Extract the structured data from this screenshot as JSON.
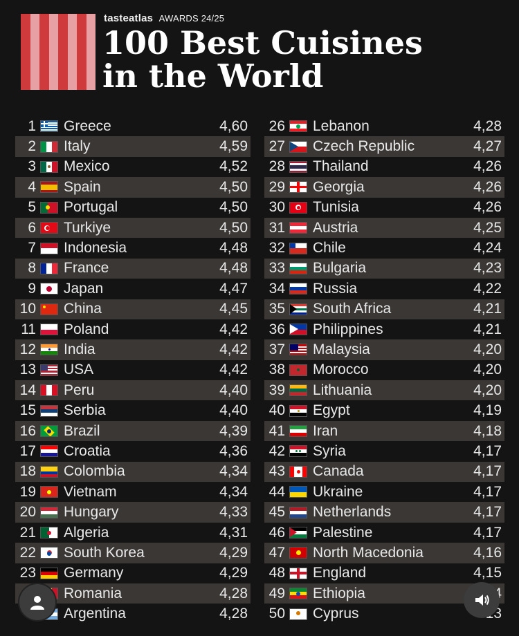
{
  "header": {
    "brand": "tasteatlas",
    "awards": "AWARDS 24/25",
    "title_line1": "100 Best Cuisines",
    "title_line2": "in the World"
  },
  "left": [
    {
      "rank": "1",
      "name": "Greece",
      "score": "4,60",
      "flag": "greece"
    },
    {
      "rank": "2",
      "name": "Italy",
      "score": "4,59",
      "flag": "italy"
    },
    {
      "rank": "3",
      "name": "Mexico",
      "score": "4,52",
      "flag": "mexico"
    },
    {
      "rank": "4",
      "name": "Spain",
      "score": "4,50",
      "flag": "spain"
    },
    {
      "rank": "5",
      "name": "Portugal",
      "score": "4,50",
      "flag": "portugal"
    },
    {
      "rank": "6",
      "name": "Turkiye",
      "score": "4,50",
      "flag": "turkiye"
    },
    {
      "rank": "7",
      "name": "Indonesia",
      "score": "4,48",
      "flag": "indonesia"
    },
    {
      "rank": "8",
      "name": "France",
      "score": "4,48",
      "flag": "france"
    },
    {
      "rank": "9",
      "name": "Japan",
      "score": "4,47",
      "flag": "japan"
    },
    {
      "rank": "10",
      "name": "China",
      "score": "4,45",
      "flag": "china"
    },
    {
      "rank": "11",
      "name": "Poland",
      "score": "4,42",
      "flag": "poland"
    },
    {
      "rank": "12",
      "name": "India",
      "score": "4,42",
      "flag": "india"
    },
    {
      "rank": "13",
      "name": "USA",
      "score": "4,42",
      "flag": "usa"
    },
    {
      "rank": "14",
      "name": "Peru",
      "score": "4,40",
      "flag": "peru"
    },
    {
      "rank": "15",
      "name": "Serbia",
      "score": "4,40",
      "flag": "serbia"
    },
    {
      "rank": "16",
      "name": "Brazil",
      "score": "4,39",
      "flag": "brazil"
    },
    {
      "rank": "17",
      "name": "Croatia",
      "score": "4,36",
      "flag": "croatia"
    },
    {
      "rank": "18",
      "name": "Colombia",
      "score": "4,34",
      "flag": "colombia"
    },
    {
      "rank": "19",
      "name": "Vietnam",
      "score": "4,34",
      "flag": "vietnam"
    },
    {
      "rank": "20",
      "name": "Hungary",
      "score": "4,33",
      "flag": "hungary"
    },
    {
      "rank": "21",
      "name": "Algeria",
      "score": "4,31",
      "flag": "algeria"
    },
    {
      "rank": "22",
      "name": "South Korea",
      "score": "4,29",
      "flag": "south-korea"
    },
    {
      "rank": "23",
      "name": "Germany",
      "score": "4,29",
      "flag": "germany"
    },
    {
      "rank": "2",
      "name": "Romania",
      "score": "4,28",
      "flag": "romania"
    },
    {
      "rank": "2",
      "name": "Argentina",
      "score": "4,28",
      "flag": "argentina"
    }
  ],
  "right": [
    {
      "rank": "26",
      "name": "Lebanon",
      "score": "4,28",
      "flag": "lebanon"
    },
    {
      "rank": "27",
      "name": "Czech Republic",
      "score": "4,27",
      "flag": "czech"
    },
    {
      "rank": "28",
      "name": "Thailand",
      "score": "4,26",
      "flag": "thailand"
    },
    {
      "rank": "29",
      "name": "Georgia",
      "score": "4,26",
      "flag": "georgia"
    },
    {
      "rank": "30",
      "name": "Tunisia",
      "score": "4,26",
      "flag": "tunisia"
    },
    {
      "rank": "31",
      "name": "Austria",
      "score": "4,25",
      "flag": "austria"
    },
    {
      "rank": "32",
      "name": "Chile",
      "score": "4,24",
      "flag": "chile"
    },
    {
      "rank": "33",
      "name": "Bulgaria",
      "score": "4,23",
      "flag": "bulgaria"
    },
    {
      "rank": "34",
      "name": "Russia",
      "score": "4,22",
      "flag": "russia"
    },
    {
      "rank": "35",
      "name": "South Africa",
      "score": "4,21",
      "flag": "south-africa"
    },
    {
      "rank": "36",
      "name": "Philippines",
      "score": "4,21",
      "flag": "philippines"
    },
    {
      "rank": "37",
      "name": "Malaysia",
      "score": "4,20",
      "flag": "malaysia"
    },
    {
      "rank": "38",
      "name": "Morocco",
      "score": "4,20",
      "flag": "morocco"
    },
    {
      "rank": "39",
      "name": "Lithuania",
      "score": "4,20",
      "flag": "lithuania"
    },
    {
      "rank": "40",
      "name": "Egypt",
      "score": "4,19",
      "flag": "egypt"
    },
    {
      "rank": "41",
      "name": "Iran",
      "score": "4,18",
      "flag": "iran"
    },
    {
      "rank": "42",
      "name": "Syria",
      "score": "4,17",
      "flag": "syria"
    },
    {
      "rank": "43",
      "name": "Canada",
      "score": "4,17",
      "flag": "canada"
    },
    {
      "rank": "44",
      "name": "Ukraine",
      "score": "4,17",
      "flag": "ukraine"
    },
    {
      "rank": "45",
      "name": "Netherlands",
      "score": "4,17",
      "flag": "netherlands"
    },
    {
      "rank": "46",
      "name": "Palestine",
      "score": "4,17",
      "flag": "palestine"
    },
    {
      "rank": "47",
      "name": "North Macedonia",
      "score": "4,16",
      "flag": "north-macedonia"
    },
    {
      "rank": "48",
      "name": "England",
      "score": "4,15",
      "flag": "england"
    },
    {
      "rank": "49",
      "name": "Ethiopia",
      "score": "4",
      "flag": "ethiopia"
    },
    {
      "rank": "50",
      "name": "Cyprus",
      "score": "13",
      "flag": "cyprus"
    }
  ],
  "colors": {
    "background": "#141414",
    "row_shade": "#3a3735",
    "checker_dark": "#cf3a3c",
    "checker_light": "#e7a0a3"
  },
  "overlay": {
    "avatar_icon": "user-icon",
    "sound_icon": "speaker-icon"
  }
}
